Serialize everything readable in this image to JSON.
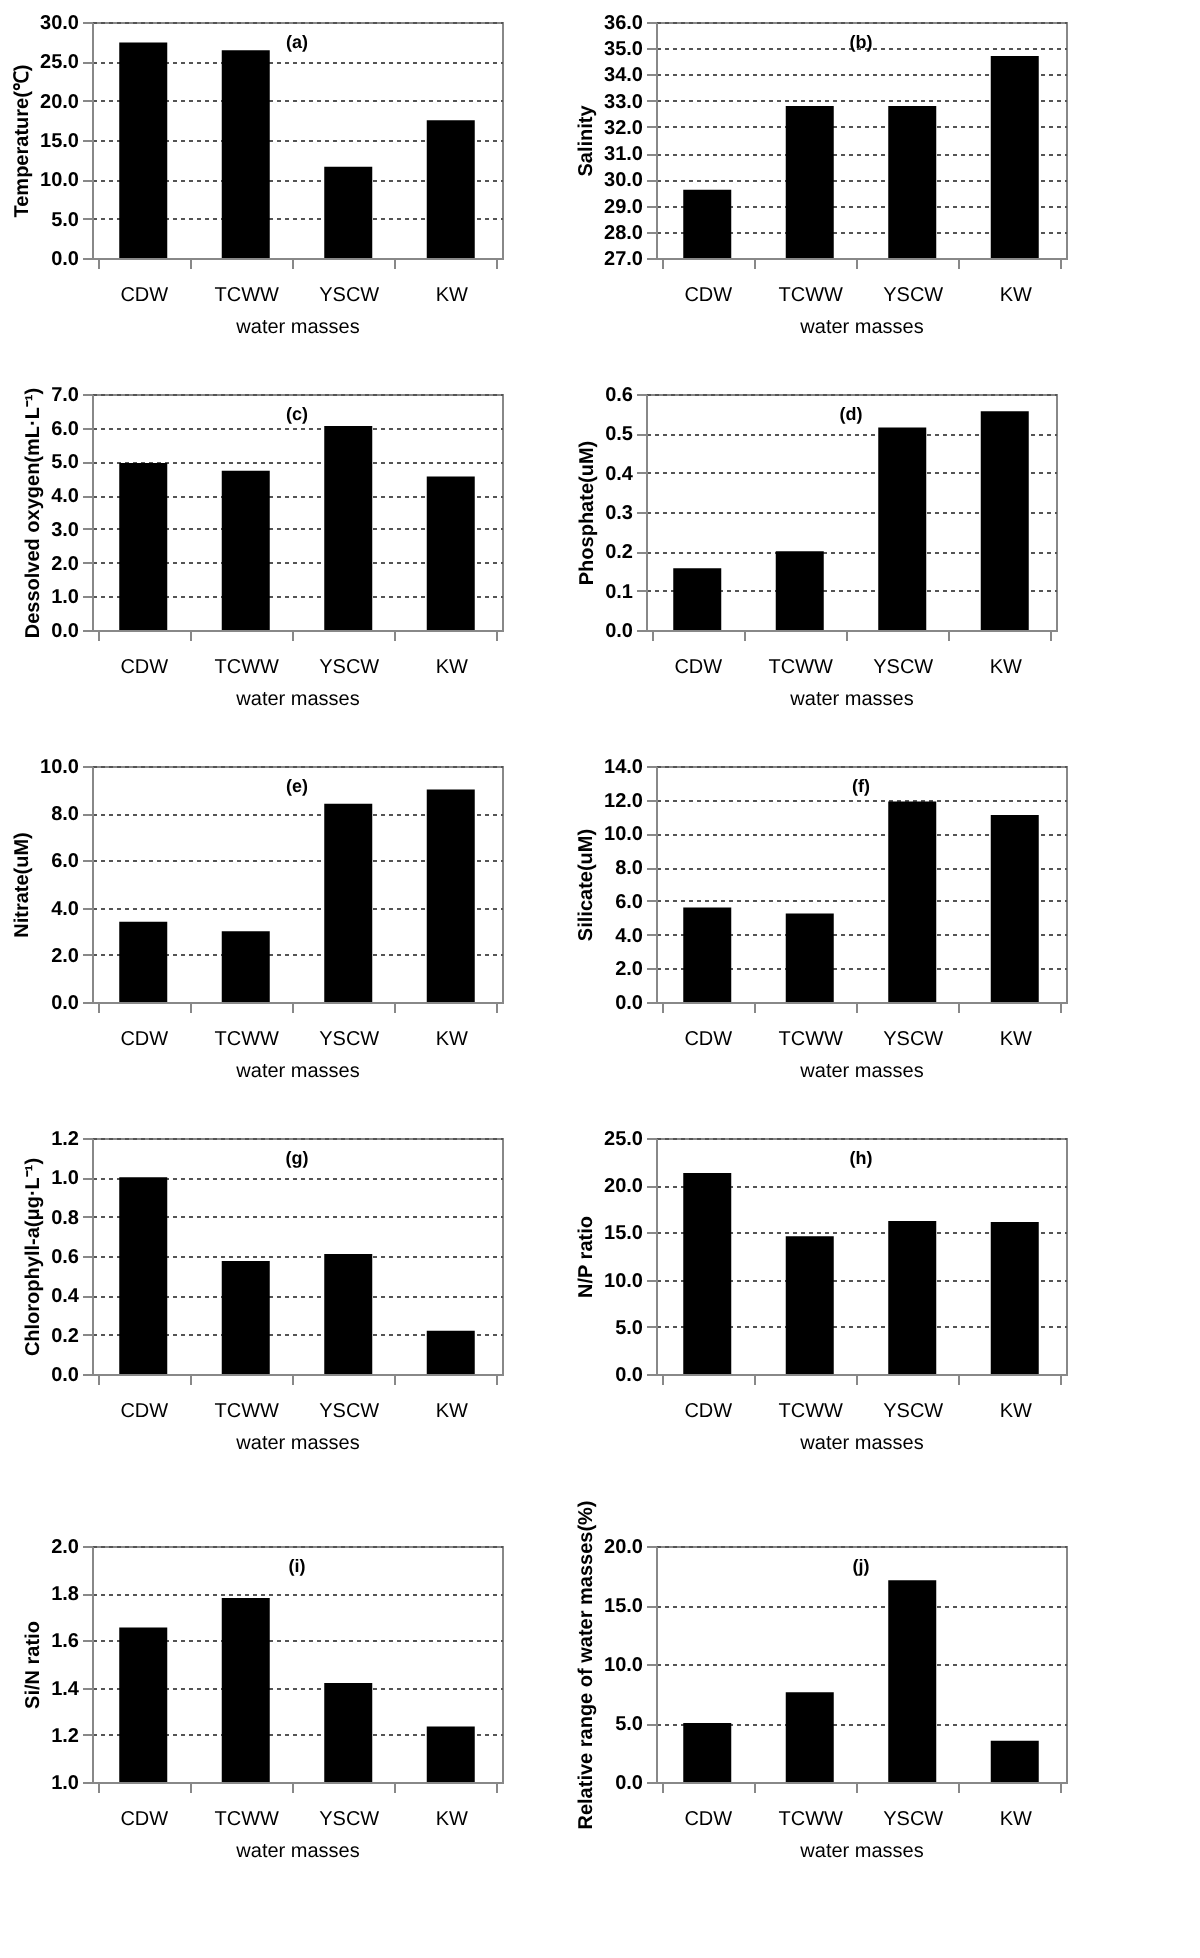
{
  "chart_data": [
    {
      "type": "bar",
      "annotations": [
        "(a)"
      ],
      "xlabel": "water masses",
      "ylabel": "Temperature(℃)",
      "categories": [
        "CDW",
        "TCWW",
        "YSCW",
        "KW"
      ],
      "values": [
        27.4,
        26.4,
        11.6,
        17.5
      ],
      "color": "#000000",
      "ylim": [
        0,
        30
      ],
      "yticks": [
        {
          "value": 0,
          "label": "0.0"
        },
        {
          "value": 5,
          "label": "5.0"
        },
        {
          "value": 10,
          "label": "10.0"
        },
        {
          "value": 15,
          "label": "15.0"
        },
        {
          "value": 20,
          "label": "20.0"
        },
        {
          "value": 25,
          "label": "25.0"
        },
        {
          "value": 30,
          "label": "30.0"
        }
      ],
      "grid": "y"
    },
    {
      "type": "bar",
      "annotations": [
        "(b)"
      ],
      "xlabel": "water masses",
      "ylabel": "Salinity",
      "categories": [
        "CDW",
        "TCWW",
        "YSCW",
        "KW"
      ],
      "values": [
        29.6,
        32.8,
        32.8,
        34.7
      ],
      "color": "#000000",
      "ylim": [
        27,
        36
      ],
      "yticks": [
        {
          "value": 27,
          "label": "27.0"
        },
        {
          "value": 28,
          "label": "28.0"
        },
        {
          "value": 29,
          "label": "29.0"
        },
        {
          "value": 30,
          "label": "30.0"
        },
        {
          "value": 31,
          "label": "31.0"
        },
        {
          "value": 32,
          "label": "32.0"
        },
        {
          "value": 33,
          "label": "33.0"
        },
        {
          "value": 34,
          "label": "34.0"
        },
        {
          "value": 35,
          "label": "35.0"
        },
        {
          "value": 36,
          "label": "36.0"
        }
      ],
      "grid": "y"
    },
    {
      "type": "bar",
      "annotations": [
        "(c)"
      ],
      "xlabel": "water masses",
      "ylabel": "Dessolved oxygen(mL·L⁻¹)",
      "categories": [
        "CDW",
        "TCWW",
        "YSCW",
        "KW"
      ],
      "values": [
        4.95,
        4.72,
        6.05,
        4.55
      ],
      "color": "#000000",
      "ylim": [
        0,
        7
      ],
      "yticks": [
        {
          "value": 0,
          "label": "0.0"
        },
        {
          "value": 1,
          "label": "1.0"
        },
        {
          "value": 2,
          "label": "2.0"
        },
        {
          "value": 3,
          "label": "3.0"
        },
        {
          "value": 4,
          "label": "4.0"
        },
        {
          "value": 5,
          "label": "5.0"
        },
        {
          "value": 6,
          "label": "6.0"
        },
        {
          "value": 7,
          "label": "7.0"
        }
      ],
      "grid": "y"
    },
    {
      "type": "bar",
      "annotations": [
        "(d)"
      ],
      "xlabel": "water masses",
      "ylabel": "Phosphate(uM)",
      "categories": [
        "CDW",
        "TCWW",
        "YSCW",
        "KW"
      ],
      "values": [
        0.157,
        0.2,
        0.515,
        0.556
      ],
      "color": "#000000",
      "ylim": [
        0,
        0.6
      ],
      "yticks": [
        {
          "value": 0,
          "label": "0.0"
        },
        0.1,
        0.2,
        0.3,
        0.4,
        0.5,
        0.6
      ],
      "grid": "y"
    },
    {
      "type": "bar",
      "annotations": [
        "(e)"
      ],
      "xlabel": "water masses",
      "ylabel": "Nitrate(uM)",
      "categories": [
        "CDW",
        "TCWW",
        "YSCW",
        "KW"
      ],
      "values": [
        3.4,
        3.0,
        8.4,
        9.0
      ],
      "color": "#000000",
      "ylim": [
        0,
        10
      ],
      "yticks": [
        {
          "value": 0,
          "label": "0.0"
        },
        {
          "value": 2,
          "label": "2.0"
        },
        {
          "value": 4,
          "label": "4.0"
        },
        {
          "value": 6,
          "label": "6.0"
        },
        {
          "value": 8,
          "label": "8.0"
        },
        {
          "value": 10,
          "label": "10.0"
        }
      ],
      "grid": "y"
    },
    {
      "type": "bar",
      "annotations": [
        "(f)"
      ],
      "xlabel": "water masses",
      "ylabel": "Silicate(uM)",
      "categories": [
        "CDW",
        "TCWW",
        "YSCW",
        "KW"
      ],
      "values": [
        5.6,
        5.25,
        11.9,
        11.1
      ],
      "color": "#000000",
      "ylim": [
        0,
        14
      ],
      "yticks": [
        {
          "value": 0,
          "label": "0.0"
        },
        {
          "value": 2,
          "label": "2.0"
        },
        {
          "value": 4,
          "label": "4.0"
        },
        {
          "value": 6,
          "label": "6.0"
        },
        {
          "value": 8,
          "label": "8.0"
        },
        {
          "value": 10,
          "label": "10.0"
        },
        {
          "value": 12,
          "label": "12.0"
        },
        {
          "value": 14,
          "label": "14.0"
        }
      ],
      "grid": "y"
    },
    {
      "type": "bar",
      "annotations": [
        "(g)"
      ],
      "xlabel": "water masses",
      "ylabel": "Chlorophyll-a(μg·L⁻¹)",
      "categories": [
        "CDW",
        "TCWW",
        "YSCW",
        "KW"
      ],
      "values": [
        1.0,
        0.575,
        0.61,
        0.22
      ],
      "color": "#000000",
      "ylim": [
        0,
        1.2
      ],
      "yticks": [
        {
          "value": 0,
          "label": "0.0"
        },
        0.2,
        0.4,
        0.6,
        0.8,
        {
          "value": 1,
          "label": "1.0"
        },
        1.2
      ],
      "grid": "y"
    },
    {
      "type": "bar",
      "annotations": [
        "(h)"
      ],
      "xlabel": "water masses",
      "ylabel": "N/P ratio",
      "categories": [
        "CDW",
        "TCWW",
        "YSCW",
        "KW"
      ],
      "values": [
        21.3,
        14.6,
        16.2,
        16.1
      ],
      "color": "#000000",
      "ylim": [
        0,
        25
      ],
      "yticks": [
        {
          "value": 0,
          "label": "0.0"
        },
        {
          "value": 5,
          "label": "5.0"
        },
        {
          "value": 10,
          "label": "10.0"
        },
        {
          "value": 15,
          "label": "15.0"
        },
        {
          "value": 20,
          "label": "20.0"
        },
        {
          "value": 25,
          "label": "25.0"
        }
      ],
      "grid": "y"
    },
    {
      "type": "bar",
      "annotations": [
        "(i)"
      ],
      "xlabel": "water masses",
      "ylabel": "Si/N ratio",
      "categories": [
        "CDW",
        "TCWW",
        "YSCW",
        "KW"
      ],
      "values": [
        1.655,
        1.78,
        1.42,
        1.235
      ],
      "color": "#000000",
      "ylim": [
        1,
        2
      ],
      "yticks": [
        {
          "value": 1,
          "label": "1.0"
        },
        1.2,
        1.4,
        1.6,
        1.8,
        {
          "value": 2,
          "label": "2.0"
        }
      ],
      "grid": "y"
    },
    {
      "type": "bar",
      "annotations": [
        "(j)"
      ],
      "xlabel": "water masses",
      "ylabel": "Relative range of water masses(%)",
      "categories": [
        "CDW",
        "TCWW",
        "YSCW",
        "KW"
      ],
      "values": [
        5.0,
        7.6,
        17.1,
        3.5
      ],
      "color": "#000000",
      "ylim": [
        0,
        20
      ],
      "yticks": [
        {
          "value": 0,
          "label": "0.0"
        },
        {
          "value": 5,
          "label": "5.0"
        },
        {
          "value": 10,
          "label": "10.0"
        },
        {
          "value": 15,
          "label": "15.0"
        },
        {
          "value": 20,
          "label": "20.0"
        }
      ],
      "grid": "y"
    }
  ]
}
